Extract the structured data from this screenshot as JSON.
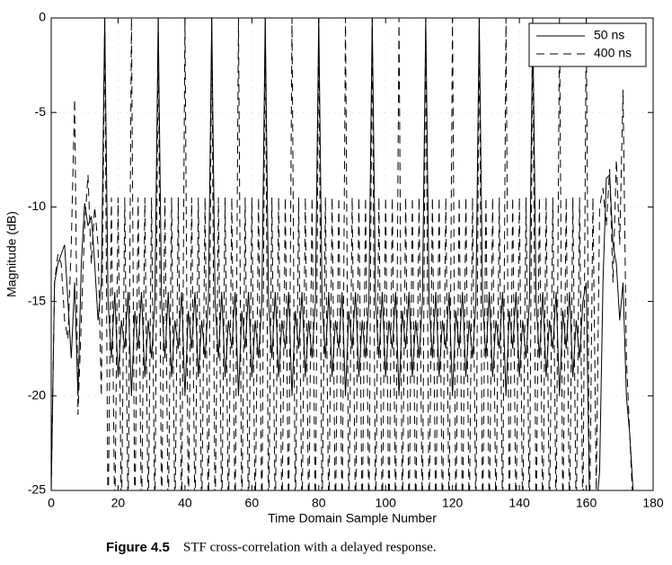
{
  "chart_data": {
    "type": "line",
    "xlabel": "Time Domain Sample Number",
    "ylabel": "Magnitude (dB)",
    "figure_label": "Figure 4.5",
    "caption": "STF cross-correlation with a delayed response.",
    "xlim": [
      0,
      180
    ],
    "ylim": [
      -25,
      0
    ],
    "xticks": [
      0,
      20,
      40,
      60,
      80,
      100,
      120,
      140,
      160,
      180
    ],
    "yticks": [
      0,
      -5,
      -10,
      -15,
      -20,
      -25
    ],
    "grid": true,
    "legend": "upper right",
    "x": [
      0,
      1,
      2,
      3,
      4,
      5,
      6,
      7,
      8,
      9,
      10,
      11,
      12,
      13,
      14,
      15,
      16,
      17,
      18,
      19,
      20,
      21,
      22,
      23,
      24,
      25,
      26,
      27,
      28,
      29,
      30,
      31,
      32,
      33,
      34,
      35,
      36,
      37,
      38,
      39,
      40,
      41,
      42,
      43,
      44,
      45,
      46,
      47,
      48,
      49,
      50,
      51,
      52,
      53,
      54,
      55,
      56,
      57,
      58,
      59,
      60,
      61,
      62,
      63,
      64,
      65,
      66,
      67,
      68,
      69,
      70,
      71,
      72,
      73,
      74,
      75,
      76,
      77,
      78,
      79,
      80,
      81,
      82,
      83,
      84,
      85,
      86,
      87,
      88,
      89,
      90,
      91,
      92,
      93,
      94,
      95,
      96,
      97,
      98,
      99,
      100,
      101,
      102,
      103,
      104,
      105,
      106,
      107,
      108,
      109,
      110,
      111,
      112,
      113,
      114,
      115,
      116,
      117,
      118,
      119,
      120,
      121,
      122,
      123,
      124,
      125,
      126,
      127,
      128,
      129,
      130,
      131,
      132,
      133,
      134,
      135,
      136,
      137,
      138,
      139,
      140,
      141,
      142,
      143,
      144,
      145,
      146,
      147,
      148,
      149,
      150,
      151,
      152,
      153,
      154,
      155,
      156,
      157,
      158,
      159,
      160,
      161,
      162,
      163,
      164,
      165,
      166,
      167,
      168,
      169,
      170,
      171,
      172,
      173,
      174,
      175
    ],
    "series": [
      {
        "name": "50 ns",
        "color": "#000000",
        "style": "solid",
        "values": [
          -25,
          -14,
          -13,
          -12.5,
          -12,
          -15,
          -18,
          -14,
          -20,
          -13,
          -9.8,
          -11,
          -10.5,
          -13,
          -16,
          -14,
          0,
          -15,
          -18,
          -14.5,
          -19,
          -16,
          -17.5,
          -14.5,
          -20,
          -15.5,
          -17.5,
          -14.5,
          -19,
          -16,
          -18,
          -15,
          0,
          -15,
          -18,
          -14.5,
          -19,
          -16,
          -17.5,
          -14.5,
          -20,
          -15.5,
          -17.5,
          -14.5,
          -19,
          -16,
          -18,
          -15,
          0,
          -15,
          -18,
          -14.5,
          -19,
          -16,
          -17.5,
          -14.5,
          -20,
          -15.5,
          -17.5,
          -14.5,
          -19,
          -16,
          -18,
          -15,
          0,
          -15,
          -18,
          -14.5,
          -19,
          -16,
          -17.5,
          -14.5,
          -20,
          -15.5,
          -17.5,
          -14.5,
          -19,
          -16,
          -18,
          -15,
          0,
          -15,
          -18,
          -14.5,
          -19,
          -16,
          -17.5,
          -14.5,
          -20,
          -15.5,
          -17.5,
          -14.5,
          -19,
          -16,
          -18,
          -15,
          0,
          -15,
          -18,
          -14.5,
          -19,
          -16,
          -17.5,
          -14.5,
          -20,
          -15.5,
          -17.5,
          -14.5,
          -19,
          -16,
          -18,
          -15,
          0,
          -15,
          -18,
          -14.5,
          -19,
          -16,
          -17.5,
          -14.5,
          -20,
          -15.5,
          -17.5,
          -14.5,
          -19,
          -16,
          -18,
          -15,
          0,
          -15,
          -18,
          -14.5,
          -19,
          -16,
          -17.5,
          -14.5,
          -20,
          -15.5,
          -17.5,
          -14.5,
          -19,
          -16,
          -18,
          -15,
          0,
          -15,
          -18,
          -14.5,
          -19,
          -16,
          -17.5,
          -14.5,
          -20,
          -15.5,
          -17.5,
          -14.5,
          -19,
          -16,
          -18,
          -15,
          -14,
          -26,
          -26,
          -26,
          -24,
          -14,
          -8.5,
          -8.3,
          -12,
          -13,
          -16,
          -14,
          -20,
          -22,
          -25,
          -26
        ]
      },
      {
        "name": "400 ns",
        "color": "#000000",
        "style": "dashed",
        "values": [
          -25,
          -14,
          -12.5,
          -13,
          -16,
          -17,
          -12,
          -4.3,
          -21,
          -16,
          -11,
          -8.3,
          -13,
          -10,
          -12,
          -20,
          0,
          -27,
          -9.5,
          -27,
          -9.5,
          -27,
          -9.5,
          -27,
          0,
          -27,
          -9.5,
          -27,
          -9.5,
          -27,
          -9.5,
          -27,
          0,
          -27,
          -9.5,
          -27,
          -9.5,
          -27,
          -9.5,
          -27,
          0,
          -27,
          -9.5,
          -27,
          -9.5,
          -27,
          -9.5,
          -27,
          0,
          -27,
          -9.5,
          -27,
          -9.5,
          -27,
          -9.5,
          -27,
          0,
          -27,
          -9.5,
          -27,
          -9.5,
          -27,
          -9.5,
          -27,
          0,
          -27,
          -9.5,
          -27,
          -9.5,
          -27,
          -9.5,
          -27,
          0,
          -27,
          -9.5,
          -27,
          -9.5,
          -27,
          -9.5,
          -27,
          0,
          -27,
          -9.5,
          -27,
          -9.5,
          -27,
          -9.5,
          -27,
          0,
          -27,
          -9.5,
          -27,
          -9.5,
          -27,
          -9.5,
          -27,
          0,
          -27,
          -9.5,
          -27,
          -9.5,
          -27,
          -9.5,
          -27,
          0,
          -27,
          -9.5,
          -27,
          -9.5,
          -27,
          -9.5,
          -27,
          0,
          -27,
          -9.5,
          -27,
          -9.5,
          -27,
          -9.5,
          -27,
          0,
          -27,
          -9.5,
          -27,
          -9.5,
          -27,
          -9.5,
          -27,
          0,
          -27,
          -9.5,
          -27,
          -9.5,
          -27,
          -9.5,
          -27,
          0,
          -27,
          -9.5,
          -27,
          -9.5,
          -27,
          -9.5,
          -27,
          0,
          -27,
          -9.5,
          -27,
          -9.5,
          -27,
          -9.5,
          -27,
          0,
          -27,
          -9.5,
          -27,
          -9.5,
          -27,
          -9.5,
          -27,
          0,
          -27,
          -9.5,
          -25,
          -10,
          -9,
          -11,
          -8,
          -14,
          -7.5,
          -12,
          -3.8,
          -18,
          -22,
          -26,
          -27
        ]
      }
    ]
  }
}
